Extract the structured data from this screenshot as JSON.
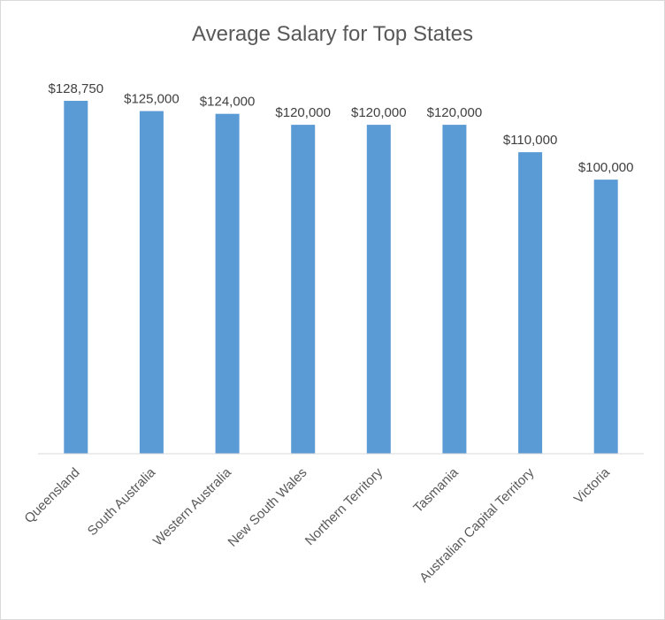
{
  "chart_data": {
    "type": "bar",
    "title": "Average Salary for Top States",
    "xlabel": "",
    "ylabel": "",
    "categories": [
      "Queensland",
      "South Australia",
      "Western Australia",
      "New South Wales",
      "Northern Territory",
      "Tasmania",
      "Australian Capital Territory",
      "Victoria"
    ],
    "values": [
      128750,
      125000,
      124000,
      120000,
      120000,
      120000,
      110000,
      100000
    ],
    "data_labels": [
      "$128,750",
      "$125,000",
      "$124,000",
      "$120,000",
      "$120,000",
      "$120,000",
      "$110,000",
      "$100,000"
    ],
    "ylim": [
      0,
      130000
    ],
    "grid": false,
    "legend": "none",
    "bar_color": "#5b9bd5"
  }
}
